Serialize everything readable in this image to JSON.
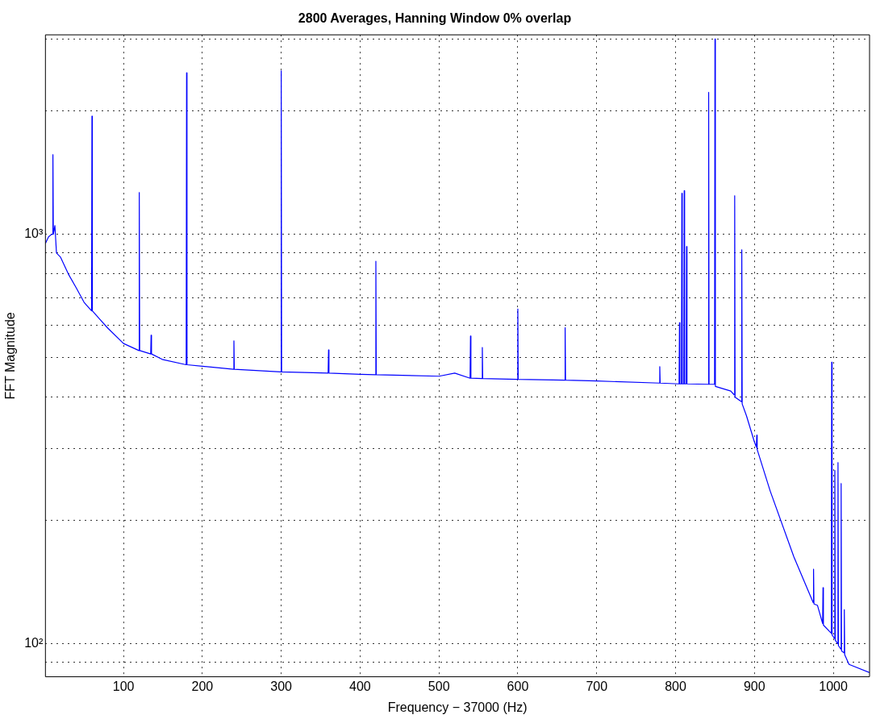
{
  "chart_data": {
    "type": "line",
    "title": "2800 Averages, Hanning Window 0% overlap",
    "xlabel": "Frequency − 37000 (Hz)",
    "ylabel": "FFT Magnitude",
    "log": "y",
    "grid": true,
    "xlim": [
      1,
      1046
    ],
    "ylim": [
      83,
      3070
    ],
    "xticks": [
      100,
      200,
      300,
      400,
      500,
      600,
      700,
      800,
      900,
      1000
    ],
    "yticks": [
      {
        "value": 90,
        "label": null
      },
      {
        "value": 100,
        "label": "10²"
      },
      {
        "value": 200,
        "label": null
      },
      {
        "value": 300,
        "label": null
      },
      {
        "value": 400,
        "label": null
      },
      {
        "value": 500,
        "label": null
      },
      {
        "value": 600,
        "label": null
      },
      {
        "value": 700,
        "label": null
      },
      {
        "value": 800,
        "label": null
      },
      {
        "value": 900,
        "label": null
      },
      {
        "value": 1000,
        "label": "10³"
      },
      {
        "value": 2000,
        "label": null
      },
      {
        "value": 3000,
        "label": null
      }
    ],
    "series": [
      {
        "color": "#0000ff",
        "x": [
          1,
          5,
          9,
          10,
          10.5,
          11,
          13,
          15,
          20,
          30,
          40,
          50,
          59.5,
          60,
          60.5,
          70,
          80,
          100,
          119.5,
          120,
          120.5,
          134.5,
          135,
          135.5,
          150,
          179.5,
          180,
          180.5,
          200,
          239.5,
          240,
          240.5,
          299.5,
          300,
          300.5,
          359.5,
          360,
          360.5,
          400,
          419.5,
          420,
          420.5,
          500,
          520,
          539.5,
          540,
          540.5,
          554.5,
          555,
          555.5,
          599.5,
          600,
          600.5,
          659.5,
          660,
          660.5,
          700,
          779.5,
          780,
          780.5,
          804.5,
          805,
          805.5,
          807.5,
          808,
          808.5,
          810.5,
          811,
          811.5,
          813.5,
          814,
          814.5,
          841.5,
          842,
          842.5,
          849.5,
          850,
          850.5,
          870,
          874.5,
          875,
          875.5,
          883.5,
          884,
          884.5,
          890,
          900,
          902.5,
          903,
          903.5,
          920,
          950,
          974.5,
          975,
          975.5,
          980,
          986.5,
          987,
          987.5,
          997.5,
          998,
          998.5,
          1001.5,
          1002,
          1002.5,
          1005.5,
          1006,
          1006.5,
          1009.5,
          1010,
          1010.5,
          1013.5,
          1014,
          1014.5,
          1020,
          1046
        ],
        "values": [
          950,
          986,
          1000,
          1000,
          1565,
          1000,
          1050,
          900,
          880,
          800,
          740,
          682,
          650,
          1943,
          650,
          620,
          590,
          541,
          520,
          1265,
          520,
          510,
          567,
          510,
          494,
          480,
          2480,
          480,
          476,
          468,
          549,
          468,
          461,
          2506,
          461,
          458,
          522,
          458,
          455,
          454,
          859,
          454,
          450,
          458,
          445,
          564,
          445,
          444,
          529,
          444,
          442,
          657,
          442,
          440,
          591,
          440,
          438,
          433,
          475,
          433,
          431,
          608,
          431,
          431,
          1259,
          431,
          431,
          1277,
          431,
          431,
          933,
          431,
          430,
          2222,
          430,
          430,
          3000,
          425,
          414,
          405,
          1242,
          400,
          390,
          916,
          385,
          360,
          311,
          302,
          323,
          298,
          236,
          163,
          126,
          152,
          125,
          124,
          112,
          137,
          111,
          106,
          487,
          105,
          103,
          265,
          102,
          100,
          277,
          99,
          97,
          246,
          96,
          95,
          121,
          94,
          89,
          85
        ]
      }
    ]
  }
}
